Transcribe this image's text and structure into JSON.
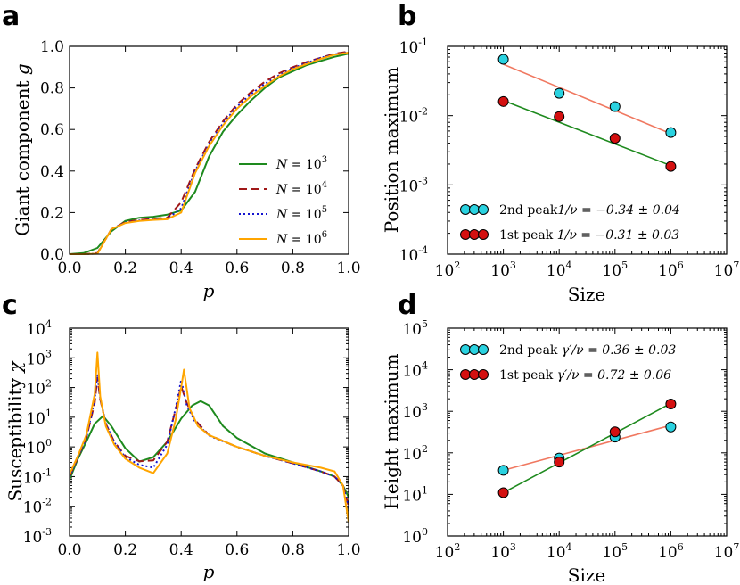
{
  "figure": {
    "panels": [
      "a",
      "b",
      "c",
      "d"
    ],
    "colors": {
      "green": "#1e8a1e",
      "darkred": "#a01818",
      "blue": "#1414d0",
      "orange": "#ffa500",
      "cyan": "#2ad2e0",
      "red": "#d41010",
      "salmon": "#f07860"
    }
  },
  "panel_a": {
    "letter": "a",
    "ylabel_text": "Giant component ",
    "ylabel_sym": "g",
    "xlabel": "p",
    "xticks": [
      "0.0",
      "0.2",
      "0.4",
      "0.6",
      "0.8",
      "1.0"
    ],
    "yticks": [
      "0.0",
      "0.2",
      "0.4",
      "0.6",
      "0.8",
      "1.0"
    ],
    "legend": [
      {
        "pre": "N",
        "mid": " = 10",
        "exp": "3"
      },
      {
        "pre": "N",
        "mid": " = 10",
        "exp": "4"
      },
      {
        "pre": "N",
        "mid": " = 10",
        "exp": "5"
      },
      {
        "pre": "N",
        "mid": " = 10",
        "exp": "6"
      }
    ]
  },
  "panel_b": {
    "letter": "b",
    "ylabel": "Position maximum",
    "xlabel": "Size",
    "xticks": [
      {
        "base": "10",
        "exp": "2"
      },
      {
        "base": "10",
        "exp": "3"
      },
      {
        "base": "10",
        "exp": "4"
      },
      {
        "base": "10",
        "exp": "5"
      },
      {
        "base": "10",
        "exp": "6"
      },
      {
        "base": "10",
        "exp": "7"
      }
    ],
    "yticks": [
      {
        "base": "10",
        "exp": "-4"
      },
      {
        "base": "10",
        "exp": "-3"
      },
      {
        "base": "10",
        "exp": "-2"
      },
      {
        "base": "10",
        "exp": "-1"
      }
    ],
    "legend": [
      {
        "label": "2nd peak",
        "formula": "1/ν = −0.34 ± 0.04"
      },
      {
        "label": "1st peak ",
        "formula": "1/ν = −0.31 ± 0.03"
      }
    ]
  },
  "panel_c": {
    "letter": "c",
    "ylabel_text": "Susceptibility ",
    "ylabel_sym": "χ",
    "xlabel": "p",
    "xticks": [
      "0.0",
      "0.2",
      "0.4",
      "0.6",
      "0.8",
      "1.0"
    ],
    "yticks": [
      {
        "base": "10",
        "exp": "-3"
      },
      {
        "base": "10",
        "exp": "-2"
      },
      {
        "base": "10",
        "exp": "-1"
      },
      {
        "base": "10",
        "exp": "0"
      },
      {
        "base": "10",
        "exp": "1"
      },
      {
        "base": "10",
        "exp": "2"
      },
      {
        "base": "10",
        "exp": "3"
      },
      {
        "base": "10",
        "exp": "4"
      }
    ]
  },
  "panel_d": {
    "letter": "d",
    "ylabel": "Height maximum",
    "xlabel": "Size",
    "xticks": [
      {
        "base": "10",
        "exp": "2"
      },
      {
        "base": "10",
        "exp": "3"
      },
      {
        "base": "10",
        "exp": "4"
      },
      {
        "base": "10",
        "exp": "5"
      },
      {
        "base": "10",
        "exp": "6"
      },
      {
        "base": "10",
        "exp": "7"
      }
    ],
    "yticks": [
      {
        "base": "10",
        "exp": "0"
      },
      {
        "base": "10",
        "exp": "1"
      },
      {
        "base": "10",
        "exp": "2"
      },
      {
        "base": "10",
        "exp": "3"
      },
      {
        "base": "10",
        "exp": "4"
      },
      {
        "base": "10",
        "exp": "5"
      }
    ],
    "legend": [
      {
        "label": "2nd peak ",
        "formula": "γ′/ν = 0.36 ± 0.03"
      },
      {
        "label": "1st peak ",
        "formula": "γ′/ν = 0.72 ± 0.06"
      }
    ]
  },
  "chart_data": [
    {
      "panel": "a",
      "type": "line",
      "title": "",
      "xlabel": "p",
      "ylabel": "Giant component g",
      "xlim": [
        0,
        1
      ],
      "ylim": [
        0,
        1
      ],
      "x": [
        0.0,
        0.05,
        0.1,
        0.15,
        0.2,
        0.25,
        0.3,
        0.35,
        0.4,
        0.45,
        0.5,
        0.55,
        0.6,
        0.65,
        0.7,
        0.75,
        0.8,
        0.85,
        0.9,
        0.95,
        1.0
      ],
      "series": [
        {
          "name": "N = 10^3",
          "color": "#1e8a1e",
          "dash": "solid",
          "values": [
            0.0,
            0.005,
            0.03,
            0.11,
            0.16,
            0.175,
            0.18,
            0.19,
            0.21,
            0.3,
            0.47,
            0.59,
            0.67,
            0.74,
            0.8,
            0.85,
            0.88,
            0.91,
            0.93,
            0.95,
            0.965
          ]
        },
        {
          "name": "N = 10^4",
          "color": "#a01818",
          "dash": "dashed",
          "values": [
            0.0,
            0.0,
            0.005,
            0.12,
            0.155,
            0.165,
            0.17,
            0.175,
            0.25,
            0.41,
            0.54,
            0.64,
            0.72,
            0.78,
            0.83,
            0.87,
            0.9,
            0.925,
            0.945,
            0.965,
            0.975
          ]
        },
        {
          "name": "N = 10^5",
          "color": "#1414d0",
          "dash": "dotted",
          "values": [
            0.0,
            0.0,
            0.003,
            0.12,
            0.152,
            0.162,
            0.167,
            0.17,
            0.22,
            0.4,
            0.53,
            0.63,
            0.71,
            0.77,
            0.82,
            0.86,
            0.895,
            0.92,
            0.945,
            0.962,
            0.972
          ]
        },
        {
          "name": "N = 10^6",
          "color": "#ffa500",
          "dash": "solid",
          "values": [
            0.0,
            0.0,
            0.002,
            0.12,
            0.15,
            0.16,
            0.165,
            0.168,
            0.2,
            0.39,
            0.52,
            0.62,
            0.7,
            0.76,
            0.81,
            0.855,
            0.89,
            0.915,
            0.94,
            0.96,
            0.97
          ]
        }
      ]
    },
    {
      "panel": "b",
      "type": "scatter",
      "title": "",
      "xlabel": "Size",
      "ylabel": "Position maximum",
      "xscale": "log",
      "yscale": "log",
      "xlim": [
        100,
        10000000
      ],
      "ylim": [
        0.0001,
        0.1
      ],
      "series": [
        {
          "name": "2nd peak 1/ν = −0.34 ± 0.04",
          "color": "#2ad2e0",
          "line_color": "#f07860",
          "x": [
            1000,
            10000,
            100000,
            1000000
          ],
          "y": [
            0.065,
            0.021,
            0.0135,
            0.0057
          ],
          "fit": {
            "x": [
              1000,
              1000000
            ],
            "y": [
              0.055,
              0.0055
            ]
          }
        },
        {
          "name": "1st peak 1/ν = −0.31 ± 0.03",
          "color": "#d41010",
          "line_color": "#1e8a1e",
          "x": [
            1000,
            10000,
            100000,
            1000000
          ],
          "y": [
            0.016,
            0.0097,
            0.0047,
            0.00185
          ],
          "fit": {
            "x": [
              1000,
              1000000
            ],
            "y": [
              0.0165,
              0.0019
            ]
          }
        }
      ],
      "legend_position": "lower-left"
    },
    {
      "panel": "c",
      "type": "line",
      "title": "",
      "xlabel": "p",
      "ylabel": "Susceptibility χ",
      "yscale": "log",
      "xlim": [
        0,
        1
      ],
      "ylim": [
        0.001,
        10000
      ],
      "series": [
        {
          "name": "N = 10^3",
          "color": "#1e8a1e",
          "dash": "solid",
          "x": [
            0.0,
            0.03,
            0.06,
            0.09,
            0.12,
            0.15,
            0.2,
            0.25,
            0.3,
            0.35,
            0.4,
            0.44,
            0.47,
            0.5,
            0.55,
            0.6,
            0.7,
            0.8,
            0.9,
            0.95,
            0.98,
            1.0
          ],
          "y": [
            0.08,
            0.4,
            1.5,
            6,
            11,
            5,
            0.9,
            0.32,
            0.45,
            1.5,
            9,
            25,
            35,
            25,
            5,
            2,
            0.6,
            0.3,
            0.15,
            0.1,
            0.05,
            0.02
          ]
        },
        {
          "name": "N = 10^4",
          "color": "#a01818",
          "dash": "dashed",
          "x": [
            0.0,
            0.03,
            0.06,
            0.09,
            0.1,
            0.11,
            0.13,
            0.16,
            0.2,
            0.25,
            0.3,
            0.35,
            0.38,
            0.4,
            0.42,
            0.45,
            0.5,
            0.6,
            0.7,
            0.8,
            0.9,
            0.95,
            0.98,
            1.0
          ],
          "y": [
            0.1,
            0.45,
            2,
            30,
            220,
            40,
            6,
            1.5,
            0.5,
            0.33,
            0.35,
            1.5,
            18,
            110,
            30,
            8,
            2.5,
            1.0,
            0.5,
            0.28,
            0.15,
            0.1,
            0.05,
            0.01
          ]
        },
        {
          "name": "N = 10^5",
          "color": "#1414d0",
          "dash": "dotted",
          "x": [
            0.0,
            0.03,
            0.06,
            0.09,
            0.1,
            0.11,
            0.13,
            0.16,
            0.2,
            0.25,
            0.3,
            0.35,
            0.38,
            0.4,
            0.42,
            0.45,
            0.5,
            0.6,
            0.7,
            0.8,
            0.9,
            0.95,
            0.98,
            1.0
          ],
          "y": [
            0.1,
            0.45,
            2,
            40,
            280,
            45,
            6,
            1.4,
            0.45,
            0.25,
            0.2,
            1.2,
            20,
            180,
            25,
            7,
            2.4,
            1.0,
            0.5,
            0.28,
            0.15,
            0.1,
            0.05,
            0.01
          ]
        },
        {
          "name": "N = 10^6",
          "color": "#ffa500",
          "dash": "solid",
          "x": [
            0.0,
            0.03,
            0.06,
            0.09,
            0.1,
            0.11,
            0.13,
            0.16,
            0.2,
            0.25,
            0.3,
            0.35,
            0.38,
            0.4,
            0.41,
            0.43,
            0.46,
            0.5,
            0.6,
            0.7,
            0.8,
            0.9,
            0.95,
            0.98,
            1.0
          ],
          "y": [
            0.12,
            0.5,
            2.5,
            60,
            1500,
            50,
            5,
            1.2,
            0.4,
            0.2,
            0.13,
            0.6,
            8,
            100,
            400,
            20,
            5,
            2.5,
            1.0,
            0.5,
            0.3,
            0.2,
            0.15,
            0.05,
            0.003
          ]
        }
      ]
    },
    {
      "panel": "d",
      "type": "scatter",
      "title": "",
      "xlabel": "Size",
      "ylabel": "Height maximum",
      "xscale": "log",
      "yscale": "log",
      "xlim": [
        100,
        10000000
      ],
      "ylim": [
        1,
        100000
      ],
      "series": [
        {
          "name": "2nd peak γ′/ν = 0.36 ± 0.03",
          "color": "#2ad2e0",
          "line_color": "#f07860",
          "x": [
            1000,
            10000,
            100000,
            1000000
          ],
          "y": [
            38,
            75,
            240,
            420
          ],
          "fit": {
            "x": [
              1000,
              1000000
            ],
            "y": [
              38,
              460
            ]
          }
        },
        {
          "name": "1st peak γ′/ν = 0.72 ± 0.06",
          "color": "#d41010",
          "line_color": "#1e8a1e",
          "x": [
            1000,
            10000,
            100000,
            1000000
          ],
          "y": [
            11,
            60,
            320,
            1500
          ],
          "fit": {
            "x": [
              1000,
              1000000
            ],
            "y": [
              11,
              1550
            ]
          }
        }
      ],
      "legend_position": "upper-left"
    }
  ]
}
